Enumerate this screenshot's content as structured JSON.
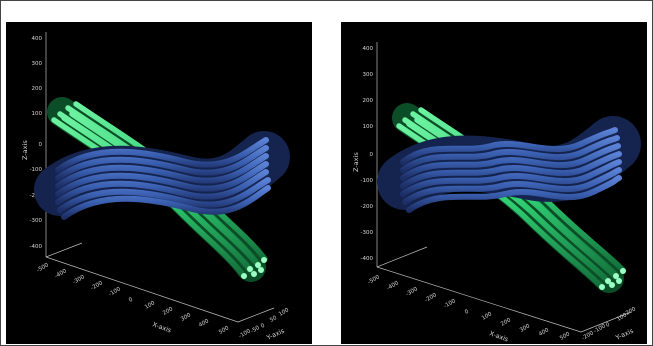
{
  "panels": [
    {
      "id": "left",
      "z_axis": {
        "label": "Z-axis",
        "ticks": [
          "400",
          "300",
          "200",
          "100",
          "0",
          "-100",
          "-200",
          "-300",
          "-400"
        ]
      },
      "x_axis": {
        "label": "X-axis",
        "ticks": [
          "-500",
          "-400",
          "-300",
          "-200",
          "-100",
          "0",
          "100",
          "200",
          "300",
          "400",
          "500"
        ]
      },
      "y_axis": {
        "label": "Y-axis",
        "ticks": [
          "-100",
          "-50",
          "0",
          "50",
          "100"
        ]
      }
    },
    {
      "id": "right",
      "z_axis": {
        "label": "Z-axis",
        "ticks": [
          "400",
          "300",
          "200",
          "100",
          "0",
          "-100",
          "-200",
          "-300",
          "-400"
        ]
      },
      "x_axis": {
        "label": "X-axis",
        "ticks": [
          "-500",
          "-400",
          "-300",
          "-200",
          "-100",
          "0",
          "100",
          "200",
          "300",
          "400",
          "500"
        ]
      },
      "y_axis": {
        "label": "Y-axis",
        "ticks": [
          "-200",
          "-100",
          "0",
          "100",
          "200"
        ]
      }
    }
  ],
  "colors": {
    "background": "#000000",
    "green_bundle": "#2ecc71",
    "blue_bundle": "#3a5fb0",
    "axis": "#bdbdbd",
    "tick_text": "#d8d8d8"
  }
}
